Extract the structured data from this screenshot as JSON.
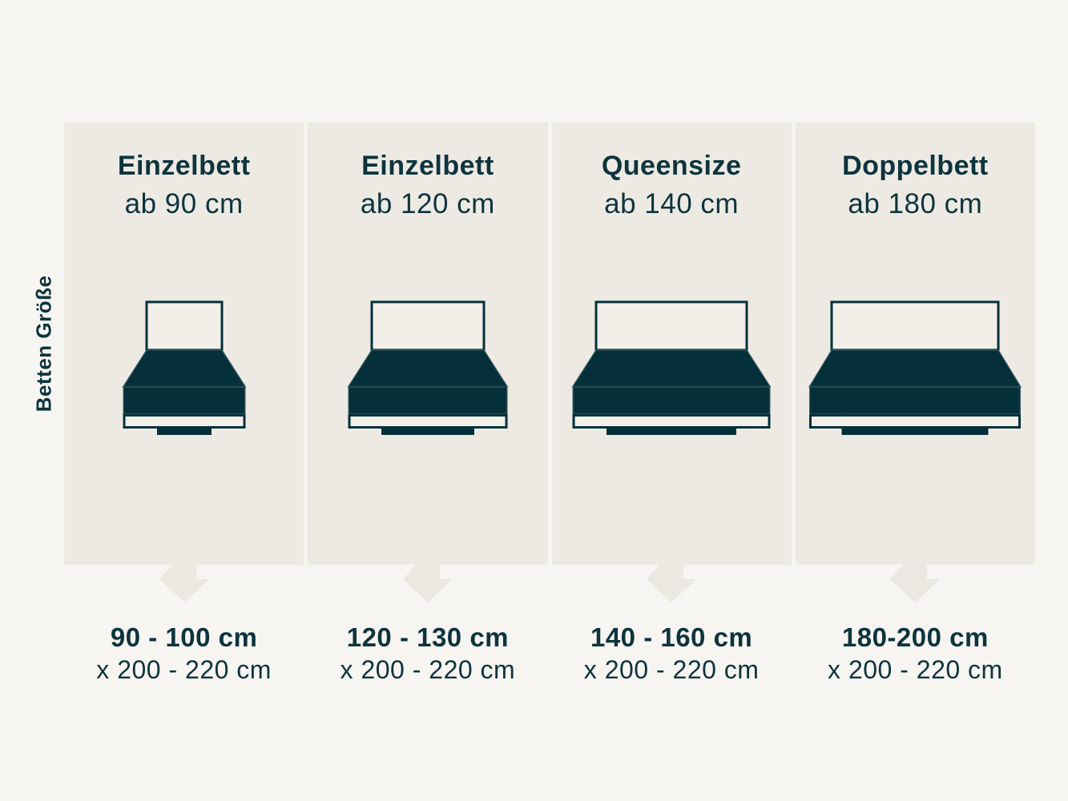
{
  "side_label": "Betten Größe",
  "columns": [
    {
      "title": "Einzelbett",
      "subtitle": "ab 90 cm",
      "size_range": "90 - 100 cm",
      "size_length": "x 200 - 220 cm",
      "bed": {
        "headboard_w": 94,
        "mattress_w": 153,
        "foot_w": 68
      }
    },
    {
      "title": "Einzelbett",
      "subtitle": "ab 120 cm",
      "size_range": "120 - 130 cm",
      "size_length": "x 200 - 220 cm",
      "bed": {
        "headboard_w": 140,
        "mattress_w": 199,
        "foot_w": 116
      }
    },
    {
      "title": "Queensize",
      "subtitle": "ab 140 cm",
      "size_range": "140 - 160 cm",
      "size_length": "x 200 - 220 cm",
      "bed": {
        "headboard_w": 188,
        "mattress_w": 247,
        "foot_w": 162
      }
    },
    {
      "title": "Doppelbett",
      "subtitle": "ab 180 cm",
      "size_range": "180-200 cm",
      "size_length": "x 200 - 220 cm",
      "bed": {
        "headboard_w": 208,
        "mattress_w": 264,
        "foot_w": 183
      }
    }
  ],
  "colors": {
    "page_bg": "#f7f5f1",
    "panel_bg": "#edeae4",
    "arrow_bg": "#ebe8e2",
    "bed_dark": "#05303a",
    "text": "#0e343d",
    "light_fill": "#f2efe9",
    "rim": "#3a5a62"
  }
}
